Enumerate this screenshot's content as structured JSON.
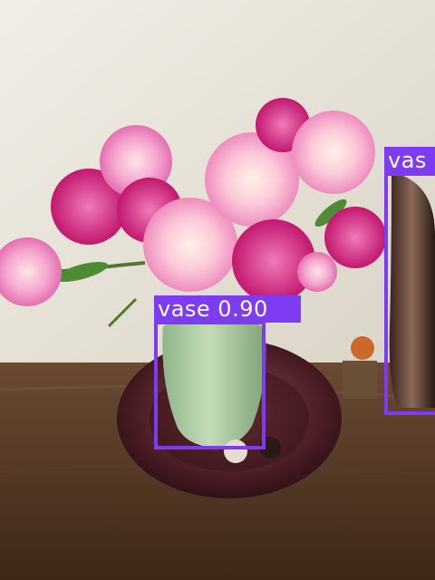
{
  "detections": [
    {
      "label": "vase",
      "score": "0.90",
      "caption": "vase 0.90",
      "color": "#7d3cf2"
    },
    {
      "label": "vase",
      "caption": "vas",
      "color": "#7d3cf2"
    }
  ]
}
